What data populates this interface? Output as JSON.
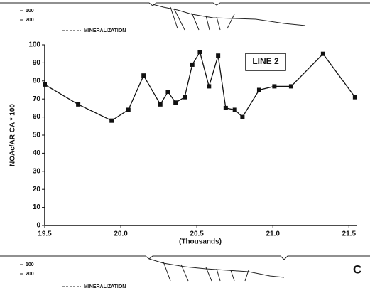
{
  "chart_data": {
    "type": "line",
    "annotation": "LINE 2",
    "x_label": "(Thousands)",
    "y_label": "NOAc/AR CA * 100",
    "x": [
      19.5,
      19.72,
      19.94,
      20.05,
      20.15,
      20.26,
      20.31,
      20.36,
      20.42,
      20.47,
      20.52,
      20.58,
      20.64,
      20.69,
      20.75,
      20.8,
      20.91,
      21.01,
      21.12,
      21.33,
      21.54
    ],
    "series": [
      {
        "color": "#111111",
        "values": [
          78,
          67,
          58,
          64,
          83,
          67,
          74,
          68,
          71,
          89,
          96,
          77,
          94,
          65,
          64,
          60,
          75,
          77,
          77,
          95,
          71
        ]
      }
    ],
    "xlim": [
      19.5,
      21.55
    ],
    "xticks": [
      19.5,
      {
        "value": 20,
        "label": "20.0"
      },
      20.5,
      {
        "value": 21,
        "label": "21.0"
      },
      21.5
    ],
    "ylim": [
      0,
      100
    ],
    "yticks": [
      0,
      10,
      20,
      30,
      40,
      50,
      60,
      70,
      80,
      90,
      100
    ]
  },
  "sections": [
    {
      "depth_labels": [
        "100",
        "200"
      ],
      "legend": "MINERALIZATION"
    },
    {
      "depth_labels": [
        "100",
        "200"
      ],
      "legend": "MINERALIZATION",
      "panel_label": "C"
    }
  ]
}
